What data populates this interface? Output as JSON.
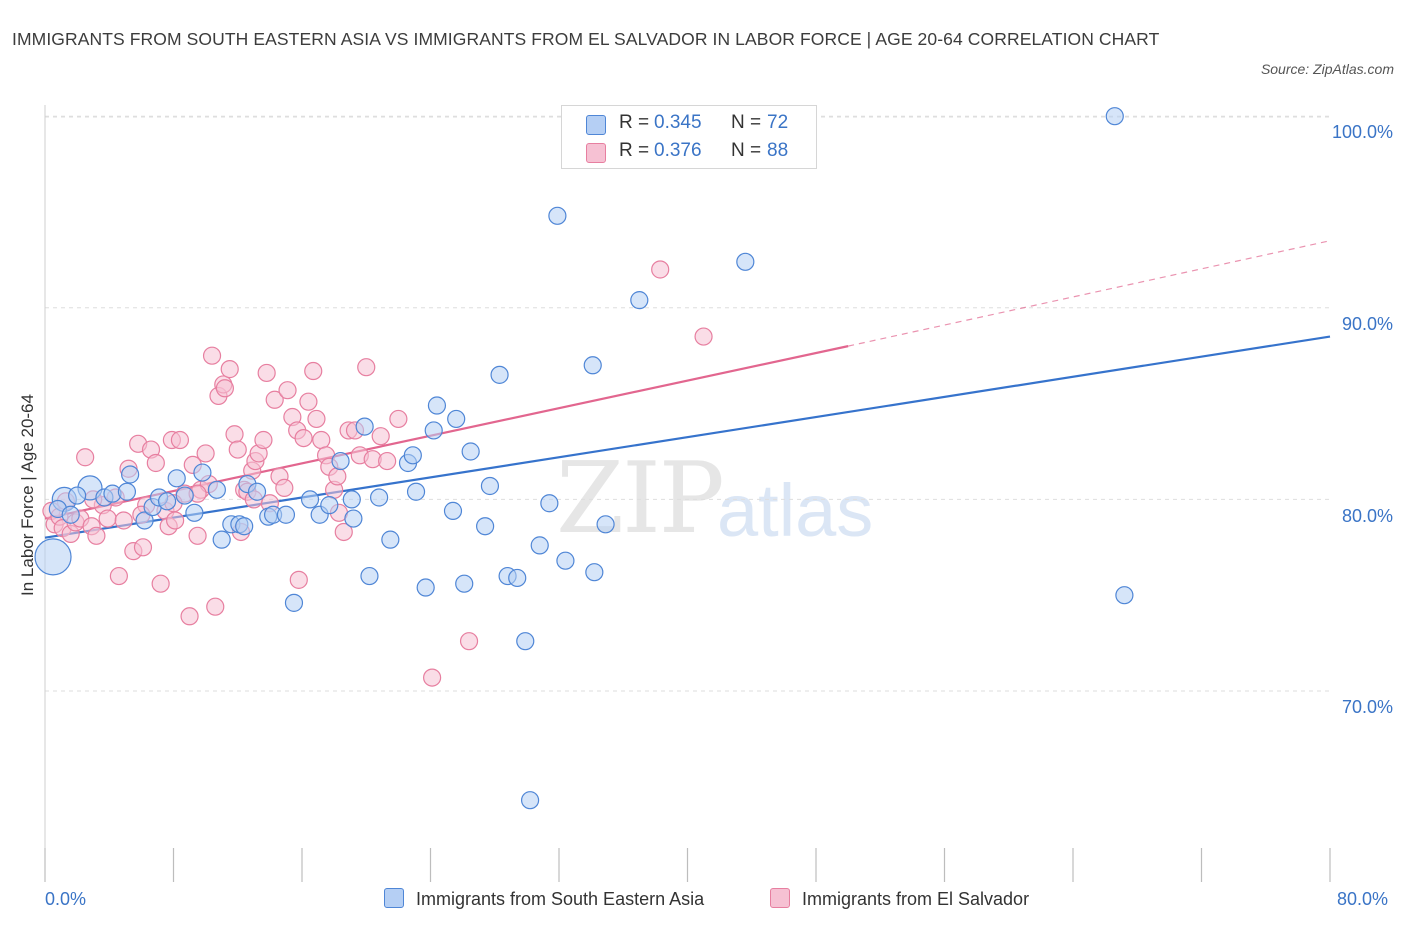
{
  "title": "IMMIGRANTS FROM SOUTH EASTERN ASIA VS IMMIGRANTS FROM EL SALVADOR IN LABOR FORCE | AGE 20-64 CORRELATION CHART",
  "source": "Source: ZipAtlas.com",
  "watermark": {
    "zip": "ZIP",
    "atlas": "atlas"
  },
  "legend": {
    "series1": {
      "r_label": "R =",
      "r_value": "0.345",
      "n_label": "N =",
      "n_value": "72"
    },
    "series2": {
      "r_label": "R =",
      "r_value": "0.376",
      "n_label": "N =",
      "n_value": "88"
    }
  },
  "colors": {
    "blue_fill": "#b5cff4",
    "blue_stroke": "#4f86d6",
    "blue_line": "#3673cc",
    "pink_fill": "#f6c1d3",
    "pink_stroke": "#e77fa0",
    "pink_line": "#e2668f",
    "grid": "#dedede",
    "axis_text": "#3a74c6"
  },
  "chart_data": {
    "type": "scatter",
    "title": "IMMIGRANTS FROM SOUTH EASTERN ASIA VS IMMIGRANTS FROM EL SALVADOR IN LABOR FORCE | AGE 20-64 CORRELATION CHART",
    "xlabel": "",
    "ylabel": "In Labor Force | Age 20-64",
    "xlim": [
      0,
      80
    ],
    "ylim": [
      60.5,
      102
    ],
    "x_tick_labels": [
      "0.0%",
      "80.0%"
    ],
    "y_tick_labels": [
      "70.0%",
      "80.0%",
      "90.0%",
      "100.0%"
    ],
    "y_ticks": [
      70,
      80,
      90,
      100
    ],
    "grid": true,
    "legend_position": "top-center",
    "series": [
      {
        "name": "Immigrants from South Eastern Asia",
        "color": "#4f86d6",
        "R": 0.345,
        "N": 72,
        "trend": {
          "x0": 0,
          "y0": 78.0,
          "x1": 80,
          "y1": 88.5
        },
        "points": [
          [
            0.5,
            77.0,
            "L"
          ],
          [
            1.2,
            80.0,
            "M"
          ],
          [
            2.8,
            80.6,
            "M"
          ],
          [
            0.8,
            79.5
          ],
          [
            1.6,
            79.2
          ],
          [
            2.0,
            80.2
          ],
          [
            3.7,
            80.1
          ],
          [
            4.2,
            80.3
          ],
          [
            5.1,
            80.4
          ],
          [
            5.3,
            81.3
          ],
          [
            6.2,
            78.9
          ],
          [
            6.7,
            79.6
          ],
          [
            7.1,
            80.1
          ],
          [
            7.6,
            79.9
          ],
          [
            8.2,
            81.1
          ],
          [
            8.7,
            80.2
          ],
          [
            9.3,
            79.3
          ],
          [
            9.8,
            81.4
          ],
          [
            10.7,
            80.5
          ],
          [
            11.0,
            77.9
          ],
          [
            11.6,
            78.7
          ],
          [
            12.1,
            78.7
          ],
          [
            12.4,
            78.6
          ],
          [
            12.6,
            80.8
          ],
          [
            13.2,
            80.4
          ],
          [
            13.9,
            79.1
          ],
          [
            14.2,
            79.2
          ],
          [
            15.0,
            79.2
          ],
          [
            15.5,
            74.6
          ],
          [
            16.5,
            80.0
          ],
          [
            17.1,
            79.2
          ],
          [
            17.7,
            79.7
          ],
          [
            18.4,
            82.0
          ],
          [
            19.1,
            80.0
          ],
          [
            19.2,
            79.0
          ],
          [
            19.9,
            83.8
          ],
          [
            20.2,
            76.0
          ],
          [
            20.8,
            80.1
          ],
          [
            21.5,
            77.9
          ],
          [
            22.6,
            81.9
          ],
          [
            22.9,
            82.3
          ],
          [
            23.1,
            80.4
          ],
          [
            23.7,
            75.4
          ],
          [
            24.2,
            83.6
          ],
          [
            24.4,
            84.9
          ],
          [
            25.4,
            79.4
          ],
          [
            25.6,
            84.2
          ],
          [
            26.1,
            75.6
          ],
          [
            26.5,
            82.5
          ],
          [
            27.4,
            78.6
          ],
          [
            27.7,
            80.7
          ],
          [
            28.3,
            86.5
          ],
          [
            28.8,
            76.0
          ],
          [
            29.4,
            75.9
          ],
          [
            29.9,
            72.6
          ],
          [
            30.2,
            64.3
          ],
          [
            30.8,
            77.6
          ],
          [
            31.4,
            79.8
          ],
          [
            31.9,
            94.8
          ],
          [
            32.4,
            76.8
          ],
          [
            34.1,
            87.0
          ],
          [
            34.2,
            76.2
          ],
          [
            34.9,
            78.7
          ],
          [
            37.0,
            90.4
          ],
          [
            43.6,
            92.4
          ],
          [
            66.6,
            100.0
          ],
          [
            67.2,
            75.0
          ]
        ]
      },
      {
        "name": "Immigrants from El Salvador",
        "color": "#e77fa0",
        "R": 0.376,
        "N": 88,
        "trend": {
          "x0": 0,
          "y0": 79.0,
          "x1": 50,
          "y1": 88.0
        },
        "trend_extension": {
          "x0": 50,
          "y0": 88.0,
          "x1": 80,
          "y1": 93.5
        },
        "points": [
          [
            0.4,
            79.4
          ],
          [
            0.6,
            78.7
          ],
          [
            0.9,
            79.1
          ],
          [
            1.1,
            78.5
          ],
          [
            1.3,
            79.9
          ],
          [
            1.6,
            78.2
          ],
          [
            1.9,
            78.8
          ],
          [
            2.2,
            79.0
          ],
          [
            2.5,
            82.2
          ],
          [
            2.9,
            78.6
          ],
          [
            3.2,
            78.1
          ],
          [
            3.6,
            79.7
          ],
          [
            3.9,
            79.0
          ],
          [
            4.4,
            80.1
          ],
          [
            4.6,
            76.0
          ],
          [
            4.9,
            78.9
          ],
          [
            5.2,
            81.6
          ],
          [
            5.5,
            77.3
          ],
          [
            5.8,
            82.9
          ],
          [
            6.1,
            77.5
          ],
          [
            6.3,
            79.7
          ],
          [
            6.6,
            82.6
          ],
          [
            6.9,
            81.9
          ],
          [
            7.2,
            75.6
          ],
          [
            7.5,
            79.4
          ],
          [
            7.7,
            78.6
          ],
          [
            7.9,
            83.1
          ],
          [
            8.1,
            78.9
          ],
          [
            8.4,
            83.1
          ],
          [
            8.7,
            80.3
          ],
          [
            9.0,
            73.9
          ],
          [
            9.2,
            81.8
          ],
          [
            9.5,
            78.1
          ],
          [
            9.7,
            80.5
          ],
          [
            10.0,
            82.4
          ],
          [
            10.2,
            80.8
          ],
          [
            10.4,
            87.5
          ],
          [
            10.6,
            74.4
          ],
          [
            10.8,
            85.4
          ],
          [
            11.1,
            86.0
          ],
          [
            11.2,
            85.8
          ],
          [
            11.5,
            86.8
          ],
          [
            11.8,
            83.4
          ],
          [
            12.0,
            82.6
          ],
          [
            12.2,
            78.3
          ],
          [
            12.4,
            80.5
          ],
          [
            12.6,
            80.4
          ],
          [
            12.9,
            81.5
          ],
          [
            13.1,
            82.0
          ],
          [
            13.3,
            82.4
          ],
          [
            13.6,
            83.1
          ],
          [
            13.8,
            86.6
          ],
          [
            14.0,
            79.8
          ],
          [
            14.3,
            85.2
          ],
          [
            14.6,
            81.2
          ],
          [
            14.9,
            80.6
          ],
          [
            15.1,
            85.7
          ],
          [
            15.4,
            84.3
          ],
          [
            15.7,
            83.6
          ],
          [
            15.8,
            75.8
          ],
          [
            16.1,
            83.2
          ],
          [
            16.4,
            85.1
          ],
          [
            16.7,
            86.7
          ],
          [
            16.9,
            84.2
          ],
          [
            17.2,
            83.1
          ],
          [
            17.5,
            82.3
          ],
          [
            17.7,
            81.7
          ],
          [
            18.0,
            80.5
          ],
          [
            18.3,
            79.3
          ],
          [
            18.6,
            78.3
          ],
          [
            18.9,
            83.6
          ],
          [
            19.3,
            83.6
          ],
          [
            19.6,
            82.3
          ],
          [
            20.0,
            86.9
          ],
          [
            20.4,
            82.1
          ],
          [
            20.9,
            83.3
          ],
          [
            21.3,
            82.0
          ],
          [
            22.0,
            84.2
          ],
          [
            24.1,
            70.7
          ],
          [
            26.4,
            72.6
          ],
          [
            38.3,
            92.0
          ],
          [
            41.0,
            88.5
          ],
          [
            9.5,
            80.3
          ],
          [
            3.0,
            80.0
          ],
          [
            6.0,
            79.2
          ],
          [
            8.0,
            79.8
          ],
          [
            13.0,
            80.0
          ],
          [
            18.2,
            81.2
          ]
        ]
      }
    ]
  },
  "bottom_legend": {
    "item1": "Immigrants from South Eastern Asia",
    "item2": "Immigrants from El Salvador"
  },
  "axis": {
    "x_min_label": "0.0%",
    "x_max_label": "80.0%",
    "y_labels": [
      "100.0%",
      "90.0%",
      "80.0%",
      "70.0%"
    ],
    "y_title": "In Labor Force | Age 20-64"
  }
}
